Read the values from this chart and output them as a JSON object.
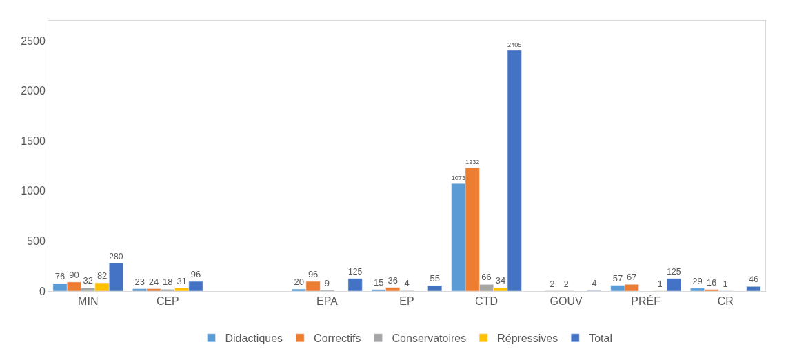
{
  "chart_data": {
    "type": "bar",
    "categories": [
      "MIN",
      "CEP",
      null,
      "EPA",
      "EP",
      "CTD",
      "GOUV",
      "PRÉF",
      "CR"
    ],
    "series": [
      {
        "name": "Didactiques",
        "color": "#5b9bd5",
        "values": [
          76,
          23,
          null,
          20,
          15,
          1073,
          null,
          57,
          29
        ]
      },
      {
        "name": "Correctifs",
        "color": "#ed7d31",
        "values": [
          90,
          24,
          null,
          96,
          36,
          1232,
          2,
          67,
          16
        ]
      },
      {
        "name": "Conservatoires",
        "color": "#a5a5a5",
        "values": [
          32,
          18,
          null,
          9,
          4,
          66,
          2,
          null,
          1
        ]
      },
      {
        "name": "Répressives",
        "color": "#ffc000",
        "values": [
          82,
          31,
          null,
          null,
          null,
          34,
          null,
          1,
          null
        ]
      },
      {
        "name": "Total",
        "color": "#4472c4",
        "values": [
          280,
          96,
          null,
          125,
          55,
          2405,
          4,
          125,
          46
        ]
      }
    ],
    "ylim": [
      0,
      2700
    ],
    "yticks": [
      0,
      500,
      1000,
      1500,
      2000,
      2500
    ],
    "legend": "bottom",
    "data_labels": true
  }
}
